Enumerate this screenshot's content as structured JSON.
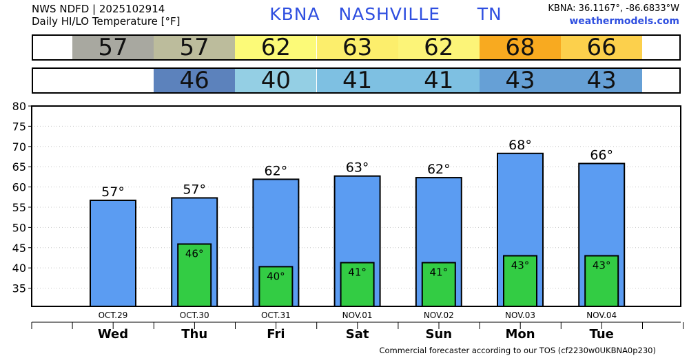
{
  "header": {
    "line1": "NWS NDFD | 2025102914",
    "line2": "Daily HI/LO Temperature [°F]",
    "station": "KBNA   NASHVILLE      TN",
    "coords": "KBNA: 36.1167°, -86.6833°W",
    "site": "weathermodels.com"
  },
  "hi_strip": [
    {
      "text": "57",
      "color": "#a8a8a0"
    },
    {
      "text": "57",
      "color": "#bcbc9c"
    },
    {
      "text": "62",
      "color": "#fcfa78"
    },
    {
      "text": "63",
      "color": "#fcee6c"
    },
    {
      "text": "62",
      "color": "#fcf478"
    },
    {
      "text": "68",
      "color": "#f8aa20"
    },
    {
      "text": "66",
      "color": "#fcd04c"
    }
  ],
  "lo_strip": [
    {
      "text": "",
      "color": "#ffffff"
    },
    {
      "text": "46",
      "color": "#5c82bc"
    },
    {
      "text": "40",
      "color": "#94cfe4"
    },
    {
      "text": "41",
      "color": "#7ec0e2"
    },
    {
      "text": "41",
      "color": "#7ec0e2"
    },
    {
      "text": "43",
      "color": "#66a0d6"
    },
    {
      "text": "43",
      "color": "#66a0d6"
    }
  ],
  "chart_data": {
    "type": "bar",
    "categories": [
      "Wed",
      "Thu",
      "Fri",
      "Sat",
      "Sun",
      "Mon",
      "Tue"
    ],
    "dates": [
      "OCT.29",
      "OCT.30",
      "OCT.31",
      "NOV.01",
      "NOV.02",
      "NOV.03",
      "NOV.04"
    ],
    "series": [
      {
        "values": [
          56.7,
          57.3,
          61.9,
          62.7,
          62.3,
          68.3,
          65.8
        ],
        "labels": [
          "57°",
          "57°",
          "62°",
          "63°",
          "62°",
          "68°",
          "66°"
        ],
        "color": "#5b9cf2"
      },
      {
        "values": [
          null,
          45.9,
          40.3,
          41.3,
          41.3,
          43.0,
          43.0
        ],
        "labels": [
          "",
          "46°",
          "40°",
          "41°",
          "41°",
          "43°",
          "43°"
        ],
        "color": "#33cc44"
      }
    ],
    "yticks": [
      35,
      40,
      45,
      50,
      55,
      60,
      65,
      70,
      75,
      80
    ],
    "ylim": [
      30.5,
      80
    ],
    "grid": true
  },
  "footer": "Commercial forecaster according to our TOS (cf2230w0UKBNA0p230)"
}
